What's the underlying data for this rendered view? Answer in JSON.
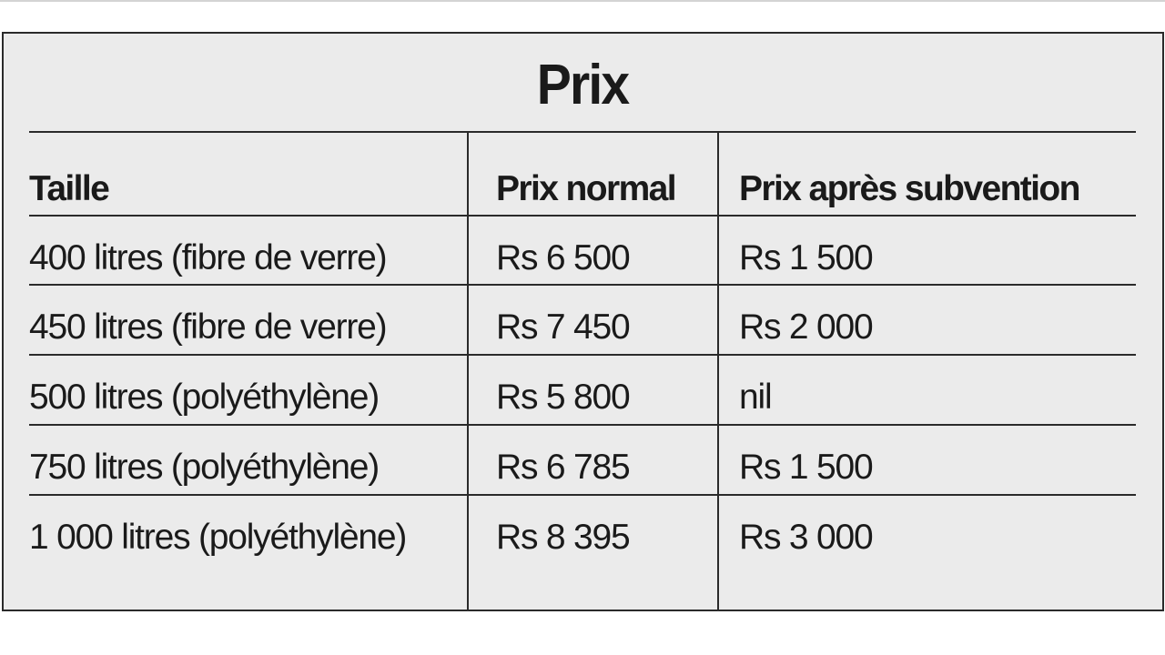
{
  "title": "Prix",
  "headers": [
    "Taille",
    "Prix normal",
    "Prix après subvention"
  ],
  "rows": [
    [
      "400 litres (fibre de verre)",
      "Rs 6 500",
      "Rs 1 500"
    ],
    [
      "450 litres (fibre de verre)",
      "Rs 7 450",
      "Rs 2 000"
    ],
    [
      "500 litres (polyéthylène)",
      "Rs 5 800",
      "nil"
    ],
    [
      "750 litres (polyéthylène)",
      "Rs 6 785",
      "Rs 1 500"
    ],
    [
      "1 000 litres (polyéthylène)",
      "Rs 8 395",
      "Rs 3 000"
    ]
  ],
  "colors": {
    "background": "#ebebeb",
    "rule": "#2a2a2a",
    "text": "#1a1a1a"
  }
}
